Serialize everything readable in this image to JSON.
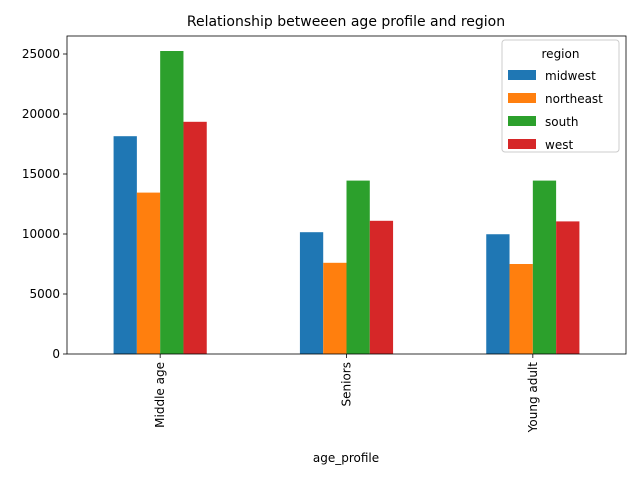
{
  "chart_data": {
    "type": "bar",
    "title": "Relationship betweeen age profile and region",
    "xlabel": "age_profile",
    "ylabel": "",
    "categories": [
      "Middle age",
      "Seniors",
      "Young adult"
    ],
    "series": [
      {
        "name": "midwest",
        "color": "#1f77b4",
        "values": [
          18150,
          10150,
          9980
        ]
      },
      {
        "name": "northeast",
        "color": "#ff7f0e",
        "values": [
          13450,
          7600,
          7500
        ]
      },
      {
        "name": "south",
        "color": "#2ca02c",
        "values": [
          25250,
          14450,
          14450
        ]
      },
      {
        "name": "west",
        "color": "#d62728",
        "values": [
          19350,
          11100,
          11050
        ]
      }
    ],
    "ylim": [
      0,
      26500
    ],
    "yticks": [
      0,
      5000,
      10000,
      15000,
      20000,
      25000
    ],
    "grid": false,
    "legend": {
      "title": "region",
      "placement": "top-right"
    }
  }
}
